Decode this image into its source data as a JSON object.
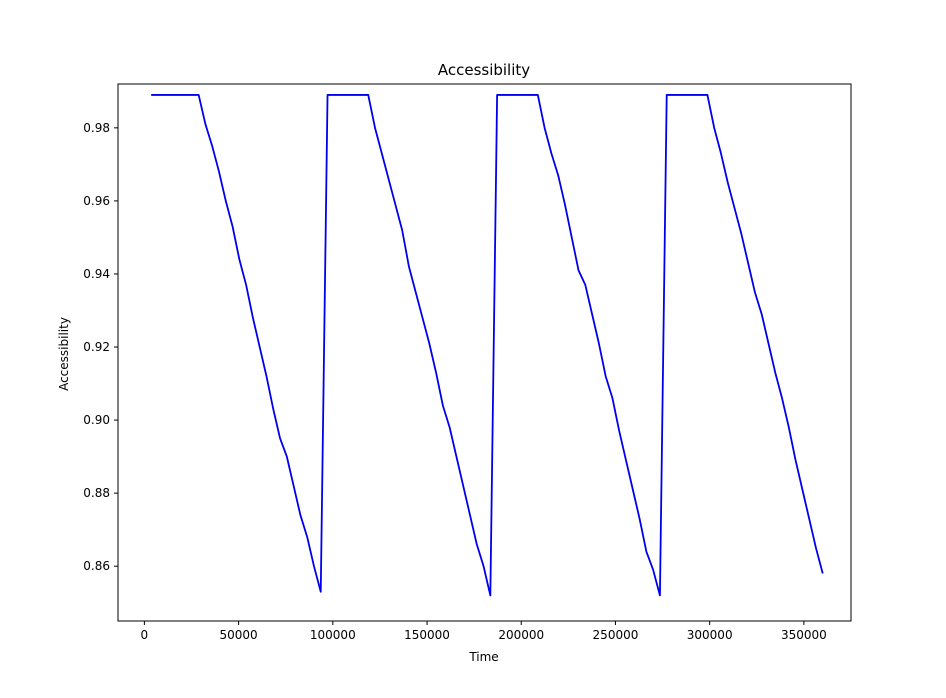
{
  "chart_data": {
    "type": "line",
    "title": "Accessibility",
    "xlabel": "Time",
    "ylabel": "Accessibility",
    "xlim": [
      -14000,
      375000
    ],
    "ylim": [
      0.845,
      0.992
    ],
    "grid": false,
    "legend": "none",
    "xticks": [
      0,
      50000,
      100000,
      150000,
      200000,
      250000,
      300000,
      350000
    ],
    "xtick_labels": [
      "0",
      "50000",
      "100000",
      "150000",
      "200000",
      "250000",
      "300000",
      "350000"
    ],
    "yticks": [
      0.86,
      0.88,
      0.9,
      0.92,
      0.94,
      0.96,
      0.98
    ],
    "ytick_labels": [
      "0.86",
      "0.88",
      "0.90",
      "0.92",
      "0.94",
      "0.96",
      "0.98"
    ],
    "series": [
      {
        "color": "#0000ee",
        "x": [
          3600,
          7200,
          10800,
          14400,
          18000,
          21600,
          25200,
          28800,
          32400,
          36000,
          39600,
          43200,
          46800,
          50400,
          54000,
          57600,
          61200,
          64800,
          68400,
          72000,
          75600,
          79200,
          82800,
          86400,
          90000,
          93600,
          97200,
          100800,
          104400,
          108000,
          111600,
          115200,
          118800,
          122400,
          126000,
          129600,
          133200,
          136800,
          140400,
          144000,
          147600,
          151200,
          154800,
          158400,
          162000,
          165600,
          169200,
          172800,
          176400,
          180000,
          183600,
          187200,
          190800,
          194400,
          198000,
          201600,
          205200,
          208800,
          212400,
          216000,
          219600,
          223200,
          226800,
          230400,
          234000,
          237600,
          241200,
          244800,
          248400,
          252000,
          255600,
          259200,
          262800,
          266400,
          270000,
          273600,
          277200,
          280800,
          284400,
          288000,
          291600,
          295200,
          298800,
          302400,
          306000,
          309600,
          313200,
          316800,
          320400,
          324000,
          327600,
          331200,
          334800,
          338400,
          342000,
          345600,
          349200,
          352800,
          356400,
          360000
        ],
        "values": [
          0.989,
          0.989,
          0.989,
          0.989,
          0.989,
          0.989,
          0.989,
          0.989,
          0.981,
          0.975,
          0.968,
          0.96,
          0.953,
          0.944,
          0.937,
          0.928,
          0.92,
          0.912,
          0.903,
          0.895,
          0.89,
          0.882,
          0.874,
          0.868,
          0.86,
          0.853,
          0.989,
          0.989,
          0.989,
          0.989,
          0.989,
          0.989,
          0.989,
          0.98,
          0.973,
          0.966,
          0.959,
          0.952,
          0.942,
          0.935,
          0.928,
          0.921,
          0.913,
          0.904,
          0.898,
          0.89,
          0.882,
          0.874,
          0.866,
          0.86,
          0.852,
          0.989,
          0.989,
          0.989,
          0.989,
          0.989,
          0.989,
          0.989,
          0.98,
          0.973,
          0.967,
          0.959,
          0.95,
          0.941,
          0.937,
          0.929,
          0.921,
          0.912,
          0.906,
          0.897,
          0.889,
          0.881,
          0.873,
          0.864,
          0.859,
          0.852,
          0.989,
          0.989,
          0.989,
          0.989,
          0.989,
          0.989,
          0.989,
          0.98,
          0.973,
          0.965,
          0.958,
          0.951,
          0.943,
          0.935,
          0.929,
          0.921,
          0.913,
          0.906,
          0.898,
          0.889,
          0.881,
          0.873,
          0.865,
          0.858
        ]
      }
    ]
  }
}
